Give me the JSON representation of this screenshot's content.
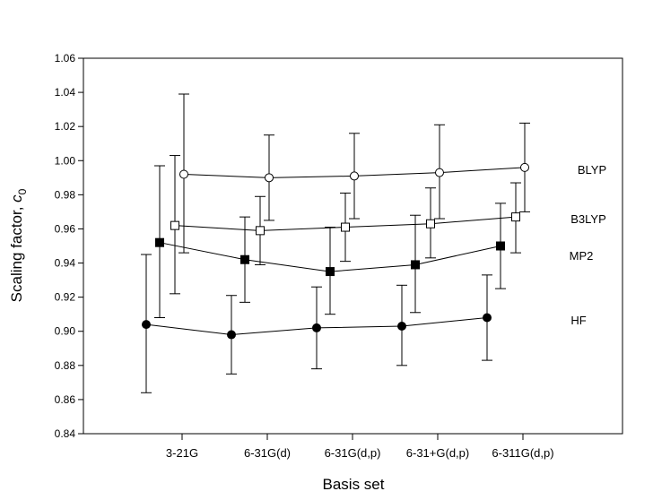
{
  "chart_data": {
    "type": "line",
    "title": "",
    "xlabel": "Basis set",
    "ylabel": {
      "main": "Scaling factor, ",
      "var": "c",
      "sub": "0"
    },
    "categories": [
      "3-21G",
      "6-31G(d)",
      "6-31G(d,p)",
      "6-31+G(d,p)",
      "6-311G(d,p)"
    ],
    "ylim": [
      0.84,
      1.06
    ],
    "yticks": [
      "0.84",
      "0.86",
      "0.88",
      "0.90",
      "0.92",
      "0.94",
      "0.96",
      "0.98",
      "1.00",
      "1.02",
      "1.04",
      "1.06"
    ],
    "grid": false,
    "series": [
      {
        "name": "BLYP",
        "marker": "open-circle",
        "values": [
          0.992,
          0.99,
          0.991,
          0.993,
          0.996
        ],
        "err_low": [
          0.946,
          0.965,
          0.966,
          0.966,
          0.97
        ],
        "err_high": [
          1.039,
          1.015,
          1.016,
          1.021,
          1.022
        ]
      },
      {
        "name": "B3LYP",
        "marker": "open-square",
        "values": [
          0.962,
          0.959,
          0.961,
          0.963,
          0.967
        ],
        "err_low": [
          0.922,
          0.939,
          0.941,
          0.943,
          0.946
        ],
        "err_high": [
          1.003,
          0.979,
          0.981,
          0.984,
          0.987
        ]
      },
      {
        "name": "MP2",
        "marker": "filled-square",
        "values": [
          0.952,
          0.942,
          0.935,
          0.939,
          0.95
        ],
        "err_low": [
          0.908,
          0.917,
          0.91,
          0.911,
          0.925
        ],
        "err_high": [
          0.997,
          0.967,
          0.961,
          0.968,
          0.975
        ]
      },
      {
        "name": "HF",
        "marker": "filled-circle",
        "values": [
          0.904,
          0.898,
          0.902,
          0.903,
          0.908
        ],
        "err_low": [
          0.864,
          0.875,
          0.878,
          0.88,
          0.883
        ],
        "err_high": [
          0.945,
          0.921,
          0.926,
          0.927,
          0.933
        ]
      }
    ]
  }
}
